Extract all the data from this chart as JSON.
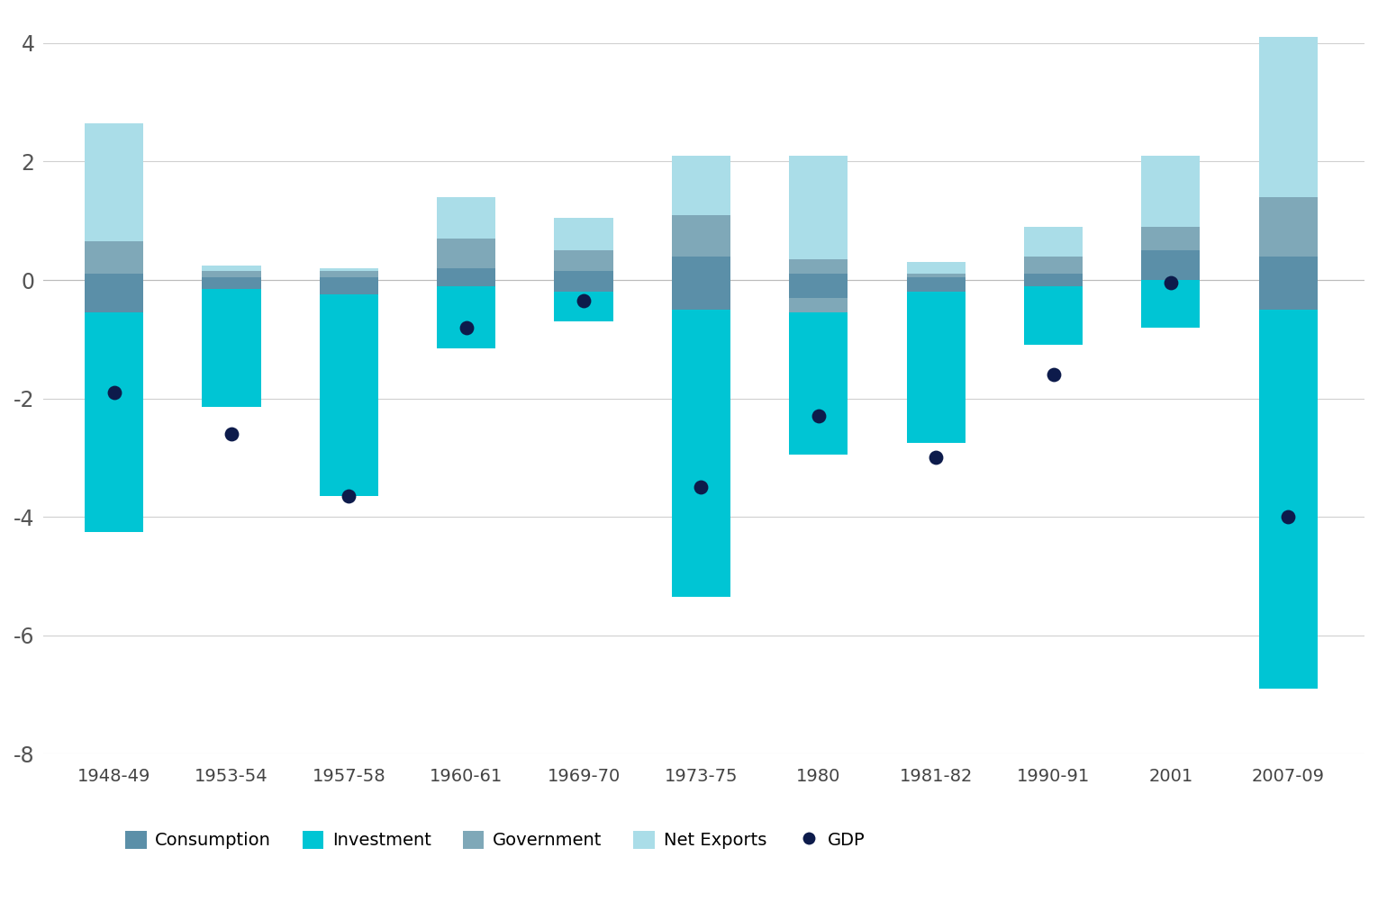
{
  "recessions": [
    "1948-49",
    "1953-54",
    "1957-58",
    "1960-61",
    "1969-70",
    "1973-75",
    "1980",
    "1981-82",
    "1990-91",
    "2001",
    "2007-09"
  ],
  "colors": {
    "consumption": "#5b8fa8",
    "investment": "#00c5d4",
    "government": "#7fa8b8",
    "net_exports": "#aadde8",
    "gdp": "#0d1b4b"
  },
  "gdp": [
    -1.9,
    -2.6,
    -3.65,
    -0.8,
    -0.35,
    -3.5,
    -2.3,
    -3.0,
    -1.6,
    -0.05,
    -4.0
  ],
  "ylim": [
    -8,
    4.5
  ],
  "yticks": [
    -8,
    -6,
    -4,
    -2,
    0,
    2,
    4
  ],
  "background_color": "#ffffff",
  "grid_color": "#d0d0d0",
  "p_net_exports": [
    2.0,
    0.1,
    0.05,
    0.7,
    0.55,
    1.0,
    1.75,
    0.2,
    0.5,
    1.2,
    2.7
  ],
  "p_government": [
    0.55,
    0.1,
    0.1,
    0.5,
    0.35,
    0.7,
    0.25,
    0.05,
    0.3,
    0.4,
    1.0
  ],
  "p_consumption": [
    0.1,
    0.05,
    0.05,
    0.2,
    0.15,
    0.4,
    0.1,
    0.05,
    0.1,
    0.5,
    0.4
  ],
  "n_investment": [
    -3.7,
    -2.0,
    -3.4,
    -1.05,
    -0.5,
    -4.85,
    -2.4,
    -2.55,
    -1.0,
    -0.8,
    -6.4
  ],
  "n_consumption": [
    -0.55,
    -0.15,
    -0.25,
    -0.1,
    -0.2,
    -0.5,
    -0.3,
    -0.2,
    -0.1,
    0.0,
    -0.5
  ],
  "n_government": [
    0.0,
    0.0,
    0.0,
    0.0,
    0.0,
    0.0,
    -0.25,
    0.0,
    0.0,
    0.0,
    0.0
  ]
}
